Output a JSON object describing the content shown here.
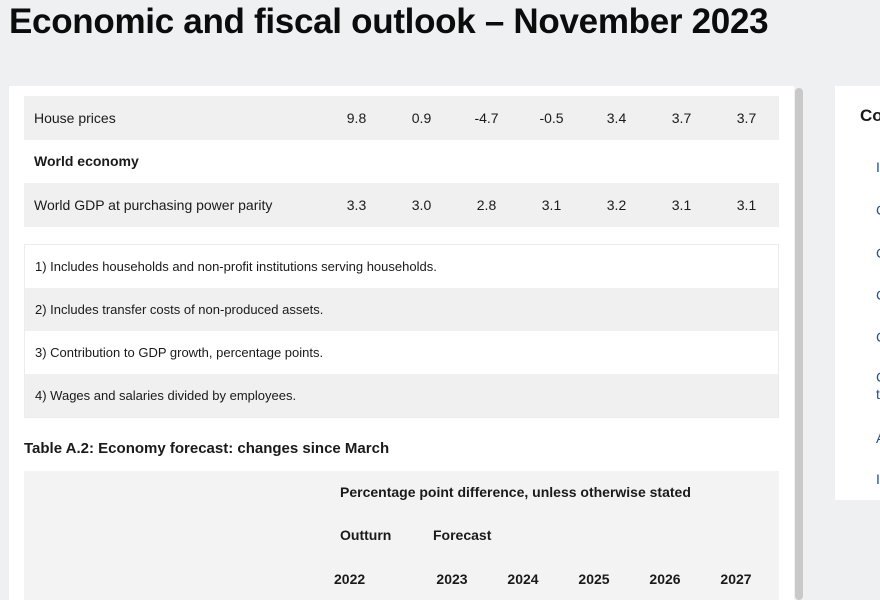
{
  "page": {
    "title": "Economic and fiscal outlook – November 2023"
  },
  "table_a1": {
    "rows": [
      {
        "label": "House prices",
        "values": [
          "9.8",
          "0.9",
          "-4.7",
          "-0.5",
          "3.4",
          "3.7",
          "3.7"
        ]
      },
      {
        "label": "World economy",
        "section": true
      },
      {
        "label": "World GDP at purchasing power parity",
        "values": [
          "3.3",
          "3.0",
          "2.8",
          "3.1",
          "3.2",
          "3.1",
          "3.1"
        ]
      }
    ],
    "notes": [
      "1) Includes households and non-profit institutions serving households.",
      "2) Includes transfer costs of non-produced assets.",
      "3) Contribution to GDP growth, percentage points.",
      "4) Wages and salaries divided by employees."
    ]
  },
  "table_a2": {
    "caption": "Table A.2: Economy forecast: changes since March",
    "header": "Percentage point difference, unless otherwise stated",
    "outturn_label": "Outturn",
    "forecast_label": "Forecast",
    "years": [
      "2022",
      "2023",
      "2024",
      "2025",
      "2026",
      "2027"
    ]
  },
  "sidebar": {
    "heading": "Co",
    "links": [
      "I",
      "C",
      "C",
      "C",
      "C",
      "C",
      "t",
      "A",
      "I"
    ]
  }
}
